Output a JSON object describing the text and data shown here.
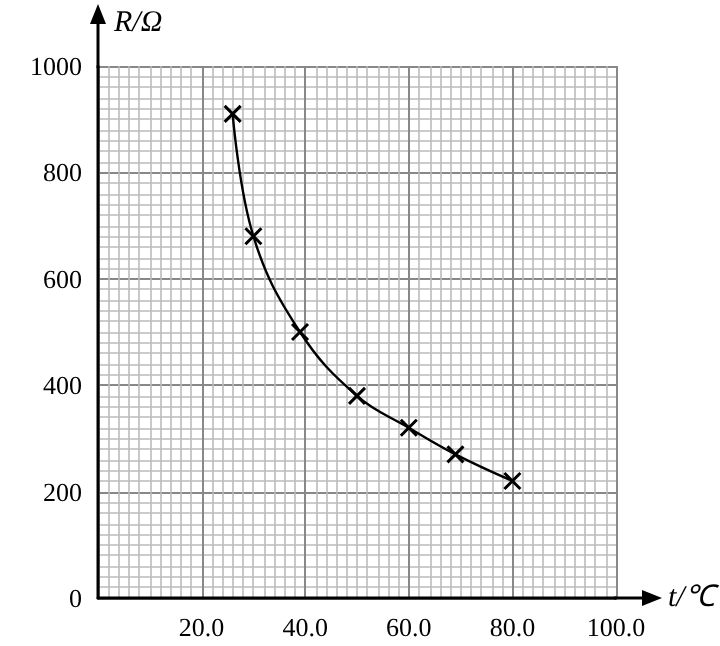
{
  "chart_data": {
    "type": "line",
    "xlabel": "t/℃",
    "ylabel": "R/Ω",
    "x": [
      26,
      30,
      39,
      50,
      60,
      69,
      80
    ],
    "series": [
      {
        "color": "#000000",
        "values": [
          910,
          680,
          500,
          380,
          320,
          270,
          220
        ]
      }
    ],
    "xlim": [
      0,
      100
    ],
    "xticks": [
      {
        "value": 0,
        "label": null
      },
      {
        "value": 20,
        "label": "20.0"
      },
      {
        "value": 40,
        "label": "40.0"
      },
      {
        "value": 60,
        "label": "60.0"
      },
      {
        "value": 80,
        "label": "80.0"
      },
      {
        "value": 100,
        "label": "100.0"
      }
    ],
    "ylim": [
      0,
      1000
    ],
    "yticks": [
      0,
      200,
      400,
      600,
      800,
      1000
    ],
    "grid": true,
    "marker": "cross",
    "line_style": "solid"
  }
}
